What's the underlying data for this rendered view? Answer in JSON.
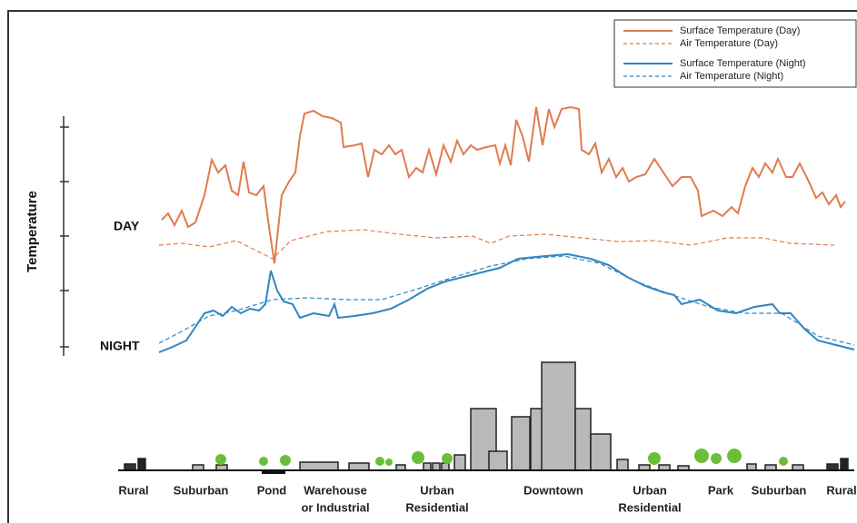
{
  "legend": [
    "Surface Temperature (Day)",
    "Air Temperature  (Day)",
    "Surface Temperature (Night)",
    "Air Temperature (Night)"
  ],
  "axis_label": "Temperature",
  "day_label": "DAY",
  "night_label": "NIGHT",
  "zones": [
    [
      "Rural"
    ],
    [
      "Suburban"
    ],
    [
      "Pond"
    ],
    [
      "Warehouse",
      "or Industrial"
    ],
    [
      "Urban",
      "Residential"
    ],
    [
      "Downtown"
    ],
    [
      "Urban",
      "Residential"
    ],
    [
      "Park"
    ],
    [
      "Suburban"
    ],
    [
      "Rural"
    ]
  ]
}
